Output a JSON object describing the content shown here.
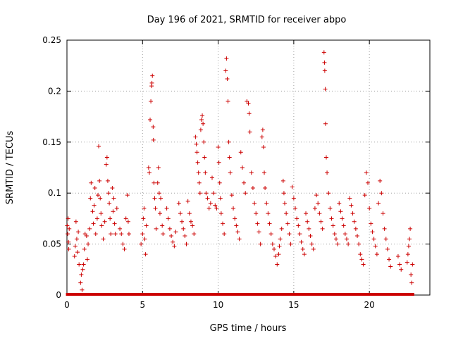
{
  "chart_data": {
    "type": "scatter",
    "title": "Day 196 of 2021, SRMTID for receiver abpo",
    "xlabel": "GPS time / hours",
    "ylabel": "SRMTID / TECUs",
    "xlim": [
      0,
      24
    ],
    "ylim": [
      0,
      0.25
    ],
    "xticks": [
      0,
      5,
      10,
      15,
      20
    ],
    "xtick_labels": [
      "0",
      "5",
      "10",
      "15",
      "20"
    ],
    "yticks": [
      0,
      0.05,
      0.1,
      0.15,
      0.2,
      0.25
    ],
    "ytick_labels": [
      "0",
      "0.05",
      "0.1",
      "0.15",
      "0.2",
      "0.25"
    ],
    "grid": true,
    "marker": "+",
    "color": "#cc0000",
    "series": [
      {
        "name": "SRMTID",
        "points": [
          [
            0.02,
            0.068
          ],
          [
            0.05,
            0.06
          ],
          [
            0.08,
            0.075
          ],
          [
            0.1,
            0.052
          ],
          [
            0.12,
            0.045
          ],
          [
            0.15,
            0.065
          ],
          [
            0.5,
            0.038
          ],
          [
            0.55,
            0.048
          ],
          [
            0.6,
            0.072
          ],
          [
            0.65,
            0.055
          ],
          [
            0.7,
            0.042
          ],
          [
            0.75,
            0.062
          ],
          [
            0.8,
            0.03
          ],
          [
            0.9,
            0.012
          ],
          [
            0.95,
            0.02
          ],
          [
            1.0,
            0.005
          ],
          [
            1.05,
            0.025
          ],
          [
            1.1,
            0.03
          ],
          [
            1.15,
            0.045
          ],
          [
            1.2,
            0.06
          ],
          [
            1.3,
            0.058
          ],
          [
            1.35,
            0.035
          ],
          [
            1.4,
            0.05
          ],
          [
            1.5,
            0.065
          ],
          [
            1.55,
            0.095
          ],
          [
            1.6,
            0.11
          ],
          [
            1.7,
            0.082
          ],
          [
            1.75,
            0.07
          ],
          [
            1.8,
            0.088
          ],
          [
            1.85,
            0.105
          ],
          [
            1.9,
            0.06
          ],
          [
            2.0,
            0.075
          ],
          [
            2.05,
            0.098
          ],
          [
            2.1,
            0.146
          ],
          [
            2.15,
            0.112
          ],
          [
            2.2,
            0.095
          ],
          [
            2.25,
            0.08
          ],
          [
            2.3,
            0.068
          ],
          [
            2.4,
            0.055
          ],
          [
            2.5,
            0.072
          ],
          [
            2.6,
            0.128
          ],
          [
            2.65,
            0.135
          ],
          [
            2.7,
            0.112
          ],
          [
            2.75,
            0.1
          ],
          [
            2.8,
            0.09
          ],
          [
            2.85,
            0.075
          ],
          [
            2.9,
            0.06
          ],
          [
            3.0,
            0.105
          ],
          [
            3.05,
            0.082
          ],
          [
            3.1,
            0.095
          ],
          [
            3.15,
            0.07
          ],
          [
            3.2,
            0.06
          ],
          [
            3.3,
            0.085
          ],
          [
            3.5,
            0.065
          ],
          [
            3.6,
            0.06
          ],
          [
            3.7,
            0.05
          ],
          [
            3.8,
            0.045
          ],
          [
            3.9,
            0.075
          ],
          [
            4.0,
            0.098
          ],
          [
            4.05,
            0.072
          ],
          [
            4.1,
            0.06
          ],
          [
            4.9,
            0.05
          ],
          [
            5.0,
            0.06
          ],
          [
            5.05,
            0.075
          ],
          [
            5.1,
            0.085
          ],
          [
            5.15,
            0.055
          ],
          [
            5.2,
            0.04
          ],
          [
            5.25,
            0.068
          ],
          [
            5.4,
            0.125
          ],
          [
            5.45,
            0.12
          ],
          [
            5.5,
            0.172
          ],
          [
            5.55,
            0.19
          ],
          [
            5.6,
            0.205
          ],
          [
            5.62,
            0.208
          ],
          [
            5.65,
            0.215
          ],
          [
            5.7,
            0.165
          ],
          [
            5.72,
            0.152
          ],
          [
            5.75,
            0.11
          ],
          [
            5.8,
            0.095
          ],
          [
            5.85,
            0.085
          ],
          [
            5.9,
            0.065
          ],
          [
            6.0,
            0.11
          ],
          [
            6.05,
            0.125
          ],
          [
            6.1,
            0.1
          ],
          [
            6.15,
            0.08
          ],
          [
            6.2,
            0.095
          ],
          [
            6.3,
            0.068
          ],
          [
            6.35,
            0.06
          ],
          [
            6.6,
            0.085
          ],
          [
            6.7,
            0.075
          ],
          [
            6.8,
            0.065
          ],
          [
            6.9,
            0.058
          ],
          [
            7.0,
            0.052
          ],
          [
            7.1,
            0.048
          ],
          [
            7.2,
            0.062
          ],
          [
            7.4,
            0.09
          ],
          [
            7.5,
            0.08
          ],
          [
            7.6,
            0.072
          ],
          [
            7.7,
            0.065
          ],
          [
            7.8,
            0.058
          ],
          [
            7.9,
            0.05
          ],
          [
            8.0,
            0.092
          ],
          [
            8.1,
            0.08
          ],
          [
            8.2,
            0.072
          ],
          [
            8.3,
            0.068
          ],
          [
            8.4,
            0.06
          ],
          [
            8.5,
            0.155
          ],
          [
            8.55,
            0.148
          ],
          [
            8.6,
            0.14
          ],
          [
            8.65,
            0.13
          ],
          [
            8.7,
            0.12
          ],
          [
            8.75,
            0.11
          ],
          [
            8.8,
            0.1
          ],
          [
            8.85,
            0.162
          ],
          [
            8.9,
            0.172
          ],
          [
            8.95,
            0.176
          ],
          [
            9.0,
            0.168
          ],
          [
            9.05,
            0.15
          ],
          [
            9.1,
            0.135
          ],
          [
            9.15,
            0.12
          ],
          [
            9.2,
            0.1
          ],
          [
            9.3,
            0.095
          ],
          [
            9.4,
            0.085
          ],
          [
            9.5,
            0.09
          ],
          [
            9.6,
            0.115
          ],
          [
            9.7,
            0.1
          ],
          [
            9.8,
            0.088
          ],
          [
            9.9,
            0.085
          ],
          [
            10.0,
            0.145
          ],
          [
            10.05,
            0.13
          ],
          [
            10.1,
            0.11
          ],
          [
            10.15,
            0.095
          ],
          [
            10.2,
            0.08
          ],
          [
            10.3,
            0.07
          ],
          [
            10.4,
            0.06
          ],
          [
            10.5,
            0.22
          ],
          [
            10.55,
            0.232
          ],
          [
            10.6,
            0.212
          ],
          [
            10.65,
            0.19
          ],
          [
            10.7,
            0.15
          ],
          [
            10.75,
            0.135
          ],
          [
            10.8,
            0.12
          ],
          [
            10.9,
            0.098
          ],
          [
            11.0,
            0.085
          ],
          [
            11.1,
            0.075
          ],
          [
            11.2,
            0.068
          ],
          [
            11.3,
            0.062
          ],
          [
            11.4,
            0.055
          ],
          [
            11.5,
            0.14
          ],
          [
            11.6,
            0.125
          ],
          [
            11.7,
            0.11
          ],
          [
            11.8,
            0.1
          ],
          [
            11.9,
            0.19
          ],
          [
            12.0,
            0.188
          ],
          [
            12.05,
            0.178
          ],
          [
            12.1,
            0.16
          ],
          [
            12.2,
            0.12
          ],
          [
            12.3,
            0.105
          ],
          [
            12.4,
            0.09
          ],
          [
            12.5,
            0.08
          ],
          [
            12.6,
            0.07
          ],
          [
            12.7,
            0.062
          ],
          [
            12.8,
            0.05
          ],
          [
            12.9,
            0.155
          ],
          [
            12.95,
            0.162
          ],
          [
            13.0,
            0.145
          ],
          [
            13.05,
            0.12
          ],
          [
            13.1,
            0.105
          ],
          [
            13.2,
            0.09
          ],
          [
            13.3,
            0.08
          ],
          [
            13.4,
            0.07
          ],
          [
            13.5,
            0.06
          ],
          [
            13.6,
            0.05
          ],
          [
            13.7,
            0.045
          ],
          [
            13.8,
            0.038
          ],
          [
            13.9,
            0.03
          ],
          [
            14.0,
            0.04
          ],
          [
            14.05,
            0.048
          ],
          [
            14.1,
            0.055
          ],
          [
            14.2,
            0.065
          ],
          [
            14.3,
            0.112
          ],
          [
            14.35,
            0.1
          ],
          [
            14.4,
            0.09
          ],
          [
            14.5,
            0.08
          ],
          [
            14.6,
            0.07
          ],
          [
            14.7,
            0.06
          ],
          [
            14.8,
            0.05
          ],
          [
            14.9,
            0.106
          ],
          [
            15.0,
            0.095
          ],
          [
            15.1,
            0.085
          ],
          [
            15.2,
            0.075
          ],
          [
            15.3,
            0.068
          ],
          [
            15.4,
            0.06
          ],
          [
            15.5,
            0.052
          ],
          [
            15.6,
            0.045
          ],
          [
            15.7,
            0.04
          ],
          [
            15.8,
            0.08
          ],
          [
            15.9,
            0.072
          ],
          [
            16.0,
            0.065
          ],
          [
            16.1,
            0.058
          ],
          [
            16.2,
            0.05
          ],
          [
            16.3,
            0.045
          ],
          [
            16.4,
            0.085
          ],
          [
            16.5,
            0.098
          ],
          [
            16.6,
            0.09
          ],
          [
            16.7,
            0.08
          ],
          [
            16.8,
            0.072
          ],
          [
            16.9,
            0.065
          ],
          [
            17.0,
            0.238
          ],
          [
            17.03,
            0.228
          ],
          [
            17.05,
            0.22
          ],
          [
            17.08,
            0.202
          ],
          [
            17.1,
            0.168
          ],
          [
            17.15,
            0.135
          ],
          [
            17.2,
            0.12
          ],
          [
            17.3,
            0.1
          ],
          [
            17.4,
            0.085
          ],
          [
            17.5,
            0.075
          ],
          [
            17.6,
            0.068
          ],
          [
            17.7,
            0.06
          ],
          [
            17.8,
            0.055
          ],
          [
            17.9,
            0.05
          ],
          [
            18.0,
            0.09
          ],
          [
            18.1,
            0.082
          ],
          [
            18.2,
            0.075
          ],
          [
            18.3,
            0.068
          ],
          [
            18.4,
            0.06
          ],
          [
            18.5,
            0.055
          ],
          [
            18.6,
            0.05
          ],
          [
            18.7,
            0.095
          ],
          [
            18.8,
            0.088
          ],
          [
            18.9,
            0.08
          ],
          [
            19.0,
            0.072
          ],
          [
            19.1,
            0.065
          ],
          [
            19.2,
            0.058
          ],
          [
            19.3,
            0.05
          ],
          [
            19.4,
            0.04
          ],
          [
            19.5,
            0.035
          ],
          [
            19.6,
            0.03
          ],
          [
            19.7,
            0.098
          ],
          [
            19.8,
            0.12
          ],
          [
            19.9,
            0.11
          ],
          [
            20.0,
            0.085
          ],
          [
            20.1,
            0.07
          ],
          [
            20.2,
            0.062
          ],
          [
            20.3,
            0.055
          ],
          [
            20.4,
            0.048
          ],
          [
            20.5,
            0.04
          ],
          [
            20.6,
            0.09
          ],
          [
            20.7,
            0.112
          ],
          [
            20.8,
            0.1
          ],
          [
            20.9,
            0.08
          ],
          [
            21.0,
            0.065
          ],
          [
            21.1,
            0.055
          ],
          [
            21.2,
            0.045
          ],
          [
            21.3,
            0.035
          ],
          [
            21.4,
            0.028
          ],
          [
            21.9,
            0.038
          ],
          [
            22.0,
            0.03
          ],
          [
            22.1,
            0.025
          ],
          [
            22.5,
            0.032
          ],
          [
            22.55,
            0.04
          ],
          [
            22.6,
            0.048
          ],
          [
            22.65,
            0.055
          ],
          [
            22.7,
            0.065
          ],
          [
            22.75,
            0.02
          ],
          [
            22.8,
            0.012
          ],
          [
            22.85,
            0.03
          ]
        ]
      },
      {
        "name": "zero-baseline",
        "x_range": [
          0.05,
          22.9
        ],
        "spacing_hours": 0.12,
        "y": 0
      }
    ]
  }
}
